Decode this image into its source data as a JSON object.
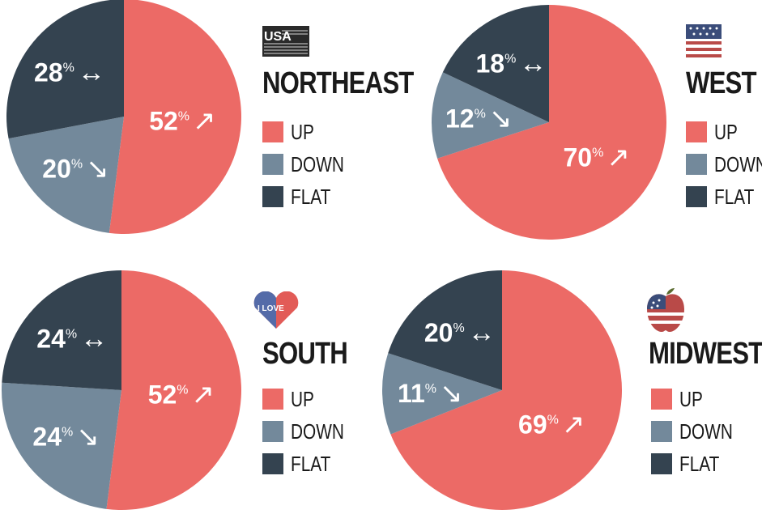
{
  "colors": {
    "up": "#ec6a66",
    "down": "#73899b",
    "flat": "#344350"
  },
  "legend_labels": [
    "UP",
    "DOWN",
    "FLAT"
  ],
  "icons": {
    "northeast": "usa-text-badge-icon",
    "west": "us-flag-icon",
    "south": "i-love-heart-icon",
    "midwest": "flag-apple-icon"
  },
  "icon_text": {
    "northeast": "USA",
    "south": "I LOVE"
  },
  "chart_data": [
    {
      "type": "pie",
      "title": "NORTHEAST",
      "categories": [
        "UP",
        "DOWN",
        "FLAT"
      ],
      "values": [
        52,
        20,
        28
      ],
      "labels": [
        "52%",
        "20%",
        "28%"
      ],
      "arrows": [
        "↗",
        "↘",
        "↔"
      ]
    },
    {
      "type": "pie",
      "title": "WEST",
      "categories": [
        "UP",
        "DOWN",
        "FLAT"
      ],
      "values": [
        70,
        12,
        18
      ],
      "labels": [
        "70%",
        "12%",
        "18%"
      ],
      "arrows": [
        "↗",
        "↘",
        "↔"
      ]
    },
    {
      "type": "pie",
      "title": "SOUTH",
      "categories": [
        "UP",
        "DOWN",
        "FLAT"
      ],
      "values": [
        52,
        24,
        24
      ],
      "labels": [
        "52%",
        "24%",
        "24%"
      ],
      "arrows": [
        "↗",
        "↘",
        "↔"
      ]
    },
    {
      "type": "pie",
      "title": "MIDWEST",
      "categories": [
        "UP",
        "DOWN",
        "FLAT"
      ],
      "values": [
        69,
        11,
        20
      ],
      "labels": [
        "69%",
        "11%",
        "20%"
      ],
      "arrows": [
        "↗",
        "↘",
        "↔"
      ]
    }
  ]
}
